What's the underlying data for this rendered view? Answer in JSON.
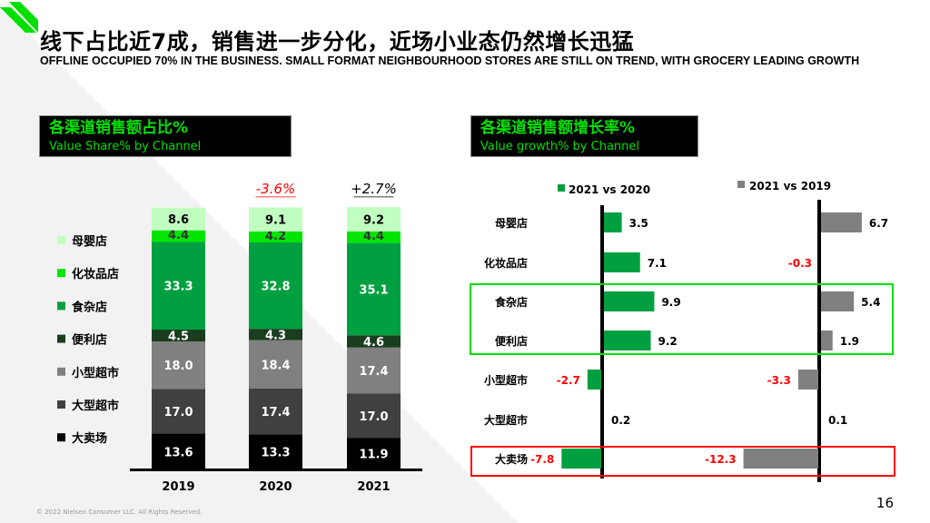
{
  "header": {
    "title": "线下占比近7成，销售进一步分化，近场小业态仍然增长迅猛",
    "subtitle": "OFFLINE OCCUPIED 70% IN THE BUSINESS. SMALL FORMAT NEIGHBOURHOOD STORES ARE STILL ON TREND, WITH GROCERY LEADING GROWTH"
  },
  "colors": {
    "accent": "#00e000",
    "negative": "#ff0000",
    "green_bar": "#00a040",
    "gray_bar": "#808080"
  },
  "chart_data": [
    {
      "type": "bar",
      "stacked": true,
      "title_cn": "各渠道销售额占比%",
      "title_en": "Value Share% by Channel",
      "categories": [
        "2019",
        "2020",
        "2021"
      ],
      "annotations": [
        {
          "category": "2020",
          "text": "-3.6%",
          "color": "#ff0000"
        },
        {
          "category": "2021",
          "text": "+2.7%",
          "color": "#000000"
        }
      ],
      "legend_placement": "left",
      "series": [
        {
          "name": "大卖场",
          "color": "#000000",
          "values": [
            13.6,
            13.3,
            11.9
          ]
        },
        {
          "name": "大型超市",
          "color": "#404040",
          "values": [
            17.0,
            17.4,
            17.0
          ]
        },
        {
          "name": "小型超市",
          "color": "#808080",
          "values": [
            18.0,
            18.4,
            17.4
          ]
        },
        {
          "name": "便利店",
          "color": "#1a3d1f",
          "values": [
            4.5,
            4.3,
            4.6
          ]
        },
        {
          "name": "食杂店",
          "color": "#00a040",
          "values": [
            33.3,
            32.8,
            35.1
          ]
        },
        {
          "name": "化妆品店",
          "color": "#00e600",
          "values": [
            4.4,
            4.2,
            4.4
          ]
        },
        {
          "name": "母婴店",
          "color": "#c0ffc0",
          "values": [
            8.6,
            9.1,
            9.2
          ]
        }
      ]
    },
    {
      "type": "bar",
      "orientation": "horizontal",
      "title_cn": "各渠道销售额增长率%",
      "title_en": "Value growth% by Channel",
      "categories": [
        "母婴店",
        "化妆品店",
        "食杂店",
        "便利店",
        "小型超市",
        "大型超市",
        "大卖场"
      ],
      "series": [
        {
          "name": "2021 vs 2020",
          "color": "#00a040",
          "values": [
            3.5,
            7.1,
            9.9,
            9.2,
            -2.7,
            0.2,
            -7.8
          ]
        },
        {
          "name": "2021 vs 2019",
          "color": "#808080",
          "values": [
            6.7,
            -0.3,
            5.4,
            1.9,
            -3.3,
            0.1,
            -12.3
          ]
        }
      ],
      "highlight_groups": [
        {
          "categories": [
            "食杂店",
            "便利店"
          ],
          "color": "#00e000"
        },
        {
          "categories": [
            "大卖场"
          ],
          "color": "#ff0000"
        }
      ]
    }
  ],
  "footer": {
    "page": "16",
    "copyright": "© 2022 Nielsen Consumer LLC. All Rights Reserved."
  }
}
